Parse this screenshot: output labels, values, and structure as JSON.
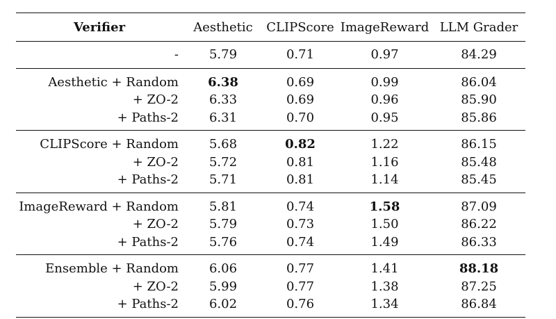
{
  "table": {
    "headers": [
      "Verifier",
      "Aesthetic",
      "CLIPScore",
      "ImageReward",
      "LLM Grader"
    ],
    "baseline": {
      "label": "-",
      "values": [
        "5.79",
        "0.71",
        "0.97",
        "84.29"
      ]
    },
    "groups": [
      {
        "rows": [
          {
            "label": "Aesthetic + Random",
            "values": [
              "6.38",
              "0.69",
              "0.99",
              "86.04"
            ],
            "bold_col": 0
          },
          {
            "label": "+ ZO-2",
            "values": [
              "6.33",
              "0.69",
              "0.96",
              "85.90"
            ]
          },
          {
            "label": "+ Paths-2",
            "values": [
              "6.31",
              "0.70",
              "0.95",
              "85.86"
            ]
          }
        ]
      },
      {
        "rows": [
          {
            "label": "CLIPScore + Random",
            "values": [
              "5.68",
              "0.82",
              "1.22",
              "86.15"
            ],
            "bold_col": 1
          },
          {
            "label": "+ ZO-2",
            "values": [
              "5.72",
              "0.81",
              "1.16",
              "85.48"
            ]
          },
          {
            "label": "+ Paths-2",
            "values": [
              "5.71",
              "0.81",
              "1.14",
              "85.45"
            ]
          }
        ]
      },
      {
        "rows": [
          {
            "label": "ImageReward + Random",
            "values": [
              "5.81",
              "0.74",
              "1.58",
              "87.09"
            ],
            "bold_col": 2
          },
          {
            "label": "+ ZO-2",
            "values": [
              "5.79",
              "0.73",
              "1.50",
              "86.22"
            ]
          },
          {
            "label": "+ Paths-2",
            "values": [
              "5.76",
              "0.74",
              "1.49",
              "86.33"
            ]
          }
        ]
      },
      {
        "rows": [
          {
            "label": "Ensemble + Random",
            "values": [
              "6.06",
              "0.77",
              "1.41",
              "88.18"
            ],
            "bold_col": 3
          },
          {
            "label": "+ ZO-2",
            "values": [
              "5.99",
              "0.77",
              "1.38",
              "87.25"
            ]
          },
          {
            "label": "+ Paths-2",
            "values": [
              "6.02",
              "0.76",
              "1.34",
              "86.84"
            ]
          }
        ]
      }
    ]
  }
}
